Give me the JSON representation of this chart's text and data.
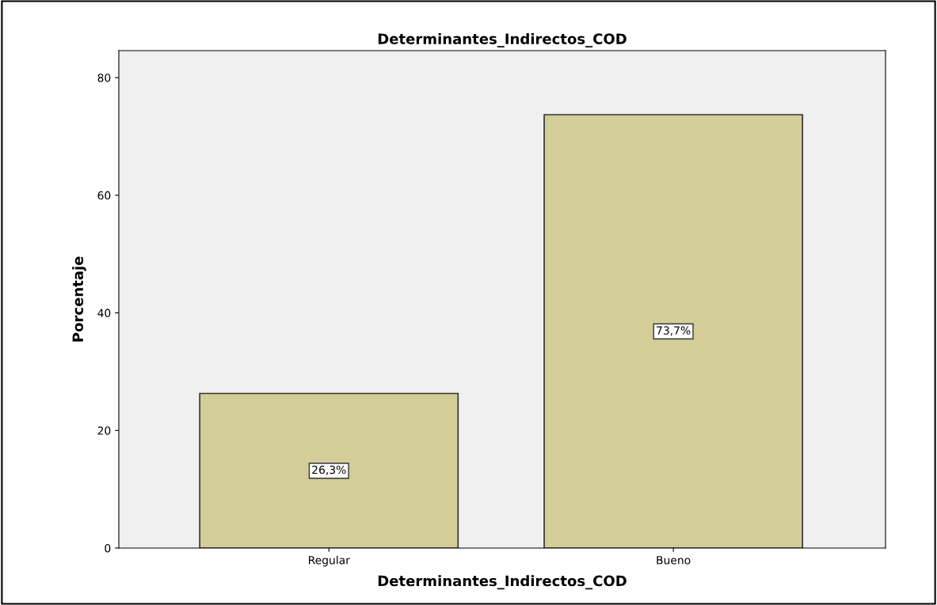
{
  "chart_data": {
    "type": "bar",
    "title": "Determinantes_Indirectos_COD",
    "xlabel": "Determinantes_Indirectos_COD",
    "ylabel": "Porcentaje",
    "categories": [
      "Regular",
      "Bueno"
    ],
    "values": [
      26.3,
      73.7
    ],
    "value_labels": [
      "26,3%",
      "73,7%"
    ],
    "color": "#d3ce97",
    "ylim": [
      0,
      84.6
    ],
    "yticks": [
      0,
      20,
      40,
      60,
      80
    ],
    "grid": false,
    "legend": false
  }
}
